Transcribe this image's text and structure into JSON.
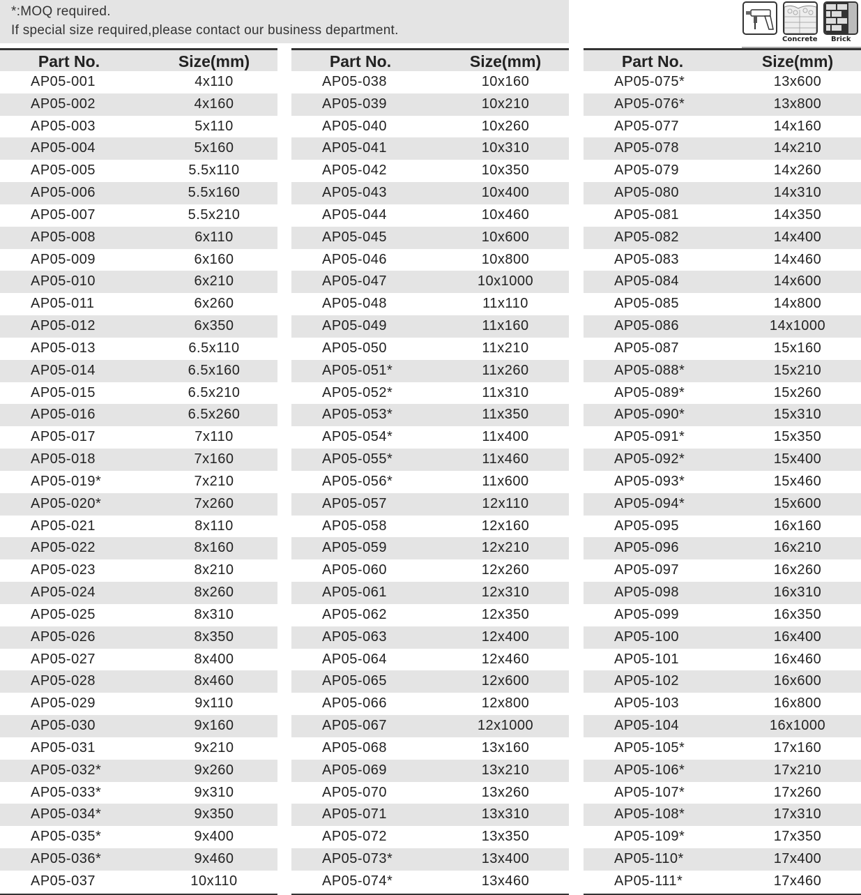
{
  "note": {
    "line1": "*:MOQ required.",
    "line2": "If special size required,please contact our business department."
  },
  "icons": [
    {
      "name": "hammer-drill-icon",
      "caption": ""
    },
    {
      "name": "concrete-icon",
      "caption": "Concrete"
    },
    {
      "name": "brick-icon",
      "caption": "Brick"
    }
  ],
  "headers": {
    "part": "Part No.",
    "size": "Size(mm)"
  },
  "columns": [
    [
      [
        "AP05-001",
        "4x110"
      ],
      [
        "AP05-002",
        "4x160"
      ],
      [
        "AP05-003",
        "5x110"
      ],
      [
        "AP05-004",
        "5x160"
      ],
      [
        "AP05-005",
        "5.5x110"
      ],
      [
        "AP05-006",
        "5.5x160"
      ],
      [
        "AP05-007",
        "5.5x210"
      ],
      [
        "AP05-008",
        "6x110"
      ],
      [
        "AP05-009",
        "6x160"
      ],
      [
        "AP05-010",
        "6x210"
      ],
      [
        "AP05-011",
        "6x260"
      ],
      [
        "AP05-012",
        "6x350"
      ],
      [
        "AP05-013",
        "6.5x110"
      ],
      [
        "AP05-014",
        "6.5x160"
      ],
      [
        "AP05-015",
        "6.5x210"
      ],
      [
        "AP05-016",
        "6.5x260"
      ],
      [
        "AP05-017",
        "7x110"
      ],
      [
        "AP05-018",
        "7x160"
      ],
      [
        "AP05-019*",
        "7x210"
      ],
      [
        "AP05-020*",
        "7x260"
      ],
      [
        "AP05-021",
        "8x110"
      ],
      [
        "AP05-022",
        "8x160"
      ],
      [
        "AP05-023",
        "8x210"
      ],
      [
        "AP05-024",
        "8x260"
      ],
      [
        "AP05-025",
        "8x310"
      ],
      [
        "AP05-026",
        "8x350"
      ],
      [
        "AP05-027",
        "8x400"
      ],
      [
        "AP05-028",
        "8x460"
      ],
      [
        "AP05-029",
        "9x110"
      ],
      [
        "AP05-030",
        "9x160"
      ],
      [
        "AP05-031",
        "9x210"
      ],
      [
        "AP05-032*",
        "9x260"
      ],
      [
        "AP05-033*",
        "9x310"
      ],
      [
        "AP05-034*",
        "9x350"
      ],
      [
        "AP05-035*",
        "9x400"
      ],
      [
        "AP05-036*",
        "9x460"
      ],
      [
        "AP05-037",
        "10x110"
      ]
    ],
    [
      [
        "AP05-038",
        "10x160"
      ],
      [
        "AP05-039",
        "10x210"
      ],
      [
        "AP05-040",
        "10x260"
      ],
      [
        "AP05-041",
        "10x310"
      ],
      [
        "AP05-042",
        "10x350"
      ],
      [
        "AP05-043",
        "10x400"
      ],
      [
        "AP05-044",
        "10x460"
      ],
      [
        "AP05-045",
        "10x600"
      ],
      [
        "AP05-046",
        "10x800"
      ],
      [
        "AP05-047",
        "10x1000"
      ],
      [
        "AP05-048",
        "11x110"
      ],
      [
        "AP05-049",
        "11x160"
      ],
      [
        "AP05-050",
        "11x210"
      ],
      [
        "AP05-051*",
        "11x260"
      ],
      [
        "AP05-052*",
        "11x310"
      ],
      [
        "AP05-053*",
        "11x350"
      ],
      [
        "AP05-054*",
        "11x400"
      ],
      [
        "AP05-055*",
        "11x460"
      ],
      [
        "AP05-056*",
        "11x600"
      ],
      [
        "AP05-057",
        "12x110"
      ],
      [
        "AP05-058",
        "12x160"
      ],
      [
        "AP05-059",
        "12x210"
      ],
      [
        "AP05-060",
        "12x260"
      ],
      [
        "AP05-061",
        "12x310"
      ],
      [
        "AP05-062",
        "12x350"
      ],
      [
        "AP05-063",
        "12x400"
      ],
      [
        "AP05-064",
        "12x460"
      ],
      [
        "AP05-065",
        "12x600"
      ],
      [
        "AP05-066",
        "12x800"
      ],
      [
        "AP05-067",
        "12x1000"
      ],
      [
        "AP05-068",
        "13x160"
      ],
      [
        "AP05-069",
        "13x210"
      ],
      [
        "AP05-070",
        "13x260"
      ],
      [
        "AP05-071",
        "13x310"
      ],
      [
        "AP05-072",
        "13x350"
      ],
      [
        "AP05-073*",
        "13x400"
      ],
      [
        "AP05-074*",
        "13x460"
      ]
    ],
    [
      [
        "AP05-075*",
        "13x600"
      ],
      [
        "AP05-076*",
        "13x800"
      ],
      [
        "AP05-077",
        "14x160"
      ],
      [
        "AP05-078",
        "14x210"
      ],
      [
        "AP05-079",
        "14x260"
      ],
      [
        "AP05-080",
        "14x310"
      ],
      [
        "AP05-081",
        "14x350"
      ],
      [
        "AP05-082",
        "14x400"
      ],
      [
        "AP05-083",
        "14x460"
      ],
      [
        "AP05-084",
        "14x600"
      ],
      [
        "AP05-085",
        "14x800"
      ],
      [
        "AP05-086",
        "14x1000"
      ],
      [
        "AP05-087",
        "15x160"
      ],
      [
        "AP05-088*",
        "15x210"
      ],
      [
        "AP05-089*",
        "15x260"
      ],
      [
        "AP05-090*",
        "15x310"
      ],
      [
        "AP05-091*",
        "15x350"
      ],
      [
        "AP05-092*",
        "15x400"
      ],
      [
        "AP05-093*",
        "15x460"
      ],
      [
        "AP05-094*",
        "15x600"
      ],
      [
        "AP05-095",
        "16x160"
      ],
      [
        "AP05-096",
        "16x210"
      ],
      [
        "AP05-097",
        "16x260"
      ],
      [
        "AP05-098",
        "16x310"
      ],
      [
        "AP05-099",
        "16x350"
      ],
      [
        "AP05-100",
        "16x400"
      ],
      [
        "AP05-101",
        "16x460"
      ],
      [
        "AP05-102",
        "16x600"
      ],
      [
        "AP05-103",
        "16x800"
      ],
      [
        "AP05-104",
        "16x1000"
      ],
      [
        "AP05-105*",
        "17x160"
      ],
      [
        "AP05-106*",
        "17x210"
      ],
      [
        "AP05-107*",
        "17x260"
      ],
      [
        "AP05-108*",
        "17x310"
      ],
      [
        "AP05-109*",
        "17x350"
      ],
      [
        "AP05-110*",
        "17x400"
      ],
      [
        "AP05-111*",
        "17x460"
      ]
    ]
  ]
}
